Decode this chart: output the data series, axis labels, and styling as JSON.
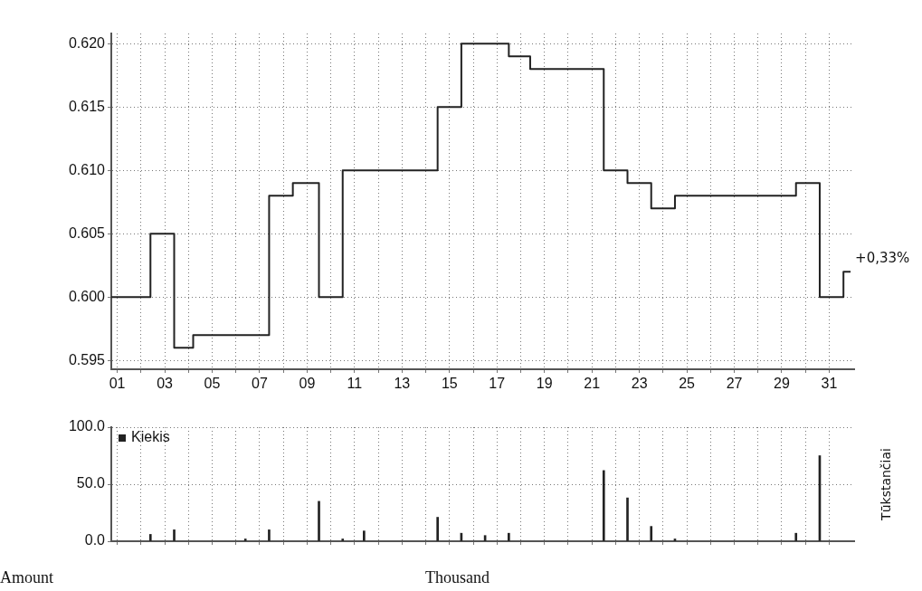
{
  "chart_data": [
    {
      "type": "step",
      "x": [
        0.75,
        2.4,
        3.4,
        4.2,
        7.4,
        8.4,
        9.5,
        10.5,
        14.5,
        15.5,
        17.5,
        18.4,
        21.5,
        22.5,
        23.5,
        24.5,
        29.6,
        30.6,
        31.6,
        31.9
      ],
      "values": [
        0.6,
        0.605,
        0.596,
        0.597,
        0.608,
        0.609,
        0.6,
        0.61,
        0.615,
        0.62,
        0.619,
        0.618,
        0.61,
        0.609,
        0.607,
        0.608,
        0.609,
        0.6,
        0.602,
        0.602
      ],
      "color": "#222222",
      "xlim": [
        0.75,
        32.05
      ],
      "ylim": [
        0.5943,
        0.6208
      ],
      "xticks": [
        {
          "value": 1,
          "label": "01"
        },
        {
          "value": 2,
          "label": null
        },
        {
          "value": 3,
          "label": "03"
        },
        {
          "value": 4,
          "label": null
        },
        {
          "value": 5,
          "label": "05"
        },
        {
          "value": 6,
          "label": null
        },
        {
          "value": 7,
          "label": "07"
        },
        {
          "value": 8,
          "label": null
        },
        {
          "value": 9,
          "label": "09"
        },
        {
          "value": 10,
          "label": null
        },
        {
          "value": 11,
          "label": "11"
        },
        {
          "value": 12,
          "label": null
        },
        {
          "value": 13,
          "label": "13"
        },
        {
          "value": 14,
          "label": null
        },
        {
          "value": 15,
          "label": "15"
        },
        {
          "value": 16,
          "label": null
        },
        {
          "value": 17,
          "label": "17"
        },
        {
          "value": 18,
          "label": null
        },
        {
          "value": 19,
          "label": "19"
        },
        {
          "value": 20,
          "label": null
        },
        {
          "value": 21,
          "label": "21"
        },
        {
          "value": 22,
          "label": null
        },
        {
          "value": 23,
          "label": "23"
        },
        {
          "value": 24,
          "label": null
        },
        {
          "value": 25,
          "label": "25"
        },
        {
          "value": 26,
          "label": null
        },
        {
          "value": 27,
          "label": "27"
        },
        {
          "value": 28,
          "label": null
        },
        {
          "value": 29,
          "label": "29"
        },
        {
          "value": 30,
          "label": null
        },
        {
          "value": 31,
          "label": "31"
        }
      ],
      "yticks": [
        {
          "value": 0.595,
          "label": "0.595"
        },
        {
          "value": 0.6,
          "label": "0.600"
        },
        {
          "value": 0.605,
          "label": "0.605"
        },
        {
          "value": 0.61,
          "label": "0.610"
        },
        {
          "value": 0.615,
          "label": "0.615"
        },
        {
          "value": 0.62,
          "label": "0.620"
        }
      ],
      "grid": true,
      "annotations": [
        {
          "text": "+0,33%",
          "x": 31.9,
          "y": 0.602
        }
      ]
    },
    {
      "type": "bar",
      "x": [
        2.4,
        3.4,
        6.4,
        7.4,
        9.5,
        10.5,
        11.4,
        14.5,
        15.5,
        16.5,
        17.5,
        21.5,
        22.5,
        23.5,
        24.5,
        29.6,
        30.6
      ],
      "series": [
        {
          "name": "Kiekis",
          "color": "#222222",
          "values": [
            6,
            10,
            2,
            10,
            35,
            2,
            9,
            21,
            7,
            5,
            7,
            62,
            38,
            13,
            2,
            7,
            75
          ]
        }
      ],
      "xlim": [
        0.75,
        32.05
      ],
      "ylim": [
        0,
        100
      ],
      "xticks": [
        {
          "value": 1,
          "label": null
        },
        {
          "value": 2,
          "label": null
        },
        {
          "value": 3,
          "label": null
        },
        {
          "value": 4,
          "label": null
        },
        {
          "value": 5,
          "label": null
        },
        {
          "value": 6,
          "label": null
        },
        {
          "value": 7,
          "label": null
        },
        {
          "value": 8,
          "label": null
        },
        {
          "value": 9,
          "label": null
        },
        {
          "value": 10,
          "label": null
        },
        {
          "value": 11,
          "label": null
        },
        {
          "value": 12,
          "label": null
        },
        {
          "value": 13,
          "label": null
        },
        {
          "value": 14,
          "label": null
        },
        {
          "value": 15,
          "label": null
        },
        {
          "value": 16,
          "label": null
        },
        {
          "value": 17,
          "label": null
        },
        {
          "value": 18,
          "label": null
        },
        {
          "value": 19,
          "label": null
        },
        {
          "value": 20,
          "label": null
        },
        {
          "value": 21,
          "label": null
        },
        {
          "value": 22,
          "label": null
        },
        {
          "value": 23,
          "label": null
        },
        {
          "value": 24,
          "label": null
        },
        {
          "value": 25,
          "label": null
        },
        {
          "value": 26,
          "label": null
        },
        {
          "value": 27,
          "label": null
        },
        {
          "value": 28,
          "label": null
        },
        {
          "value": 29,
          "label": null
        },
        {
          "value": 30,
          "label": null
        },
        {
          "value": 31,
          "label": null
        }
      ],
      "yticks": [
        {
          "value": 0,
          "label": "0.0"
        },
        {
          "value": 50,
          "label": "50.0"
        },
        {
          "value": 100,
          "label": "100.0"
        }
      ],
      "tick_labels": "y",
      "ylabel": "Tūkstančiai",
      "legend": "top left",
      "grid": true,
      "annotations": [
        "Amount",
        "Thousand"
      ]
    }
  ]
}
